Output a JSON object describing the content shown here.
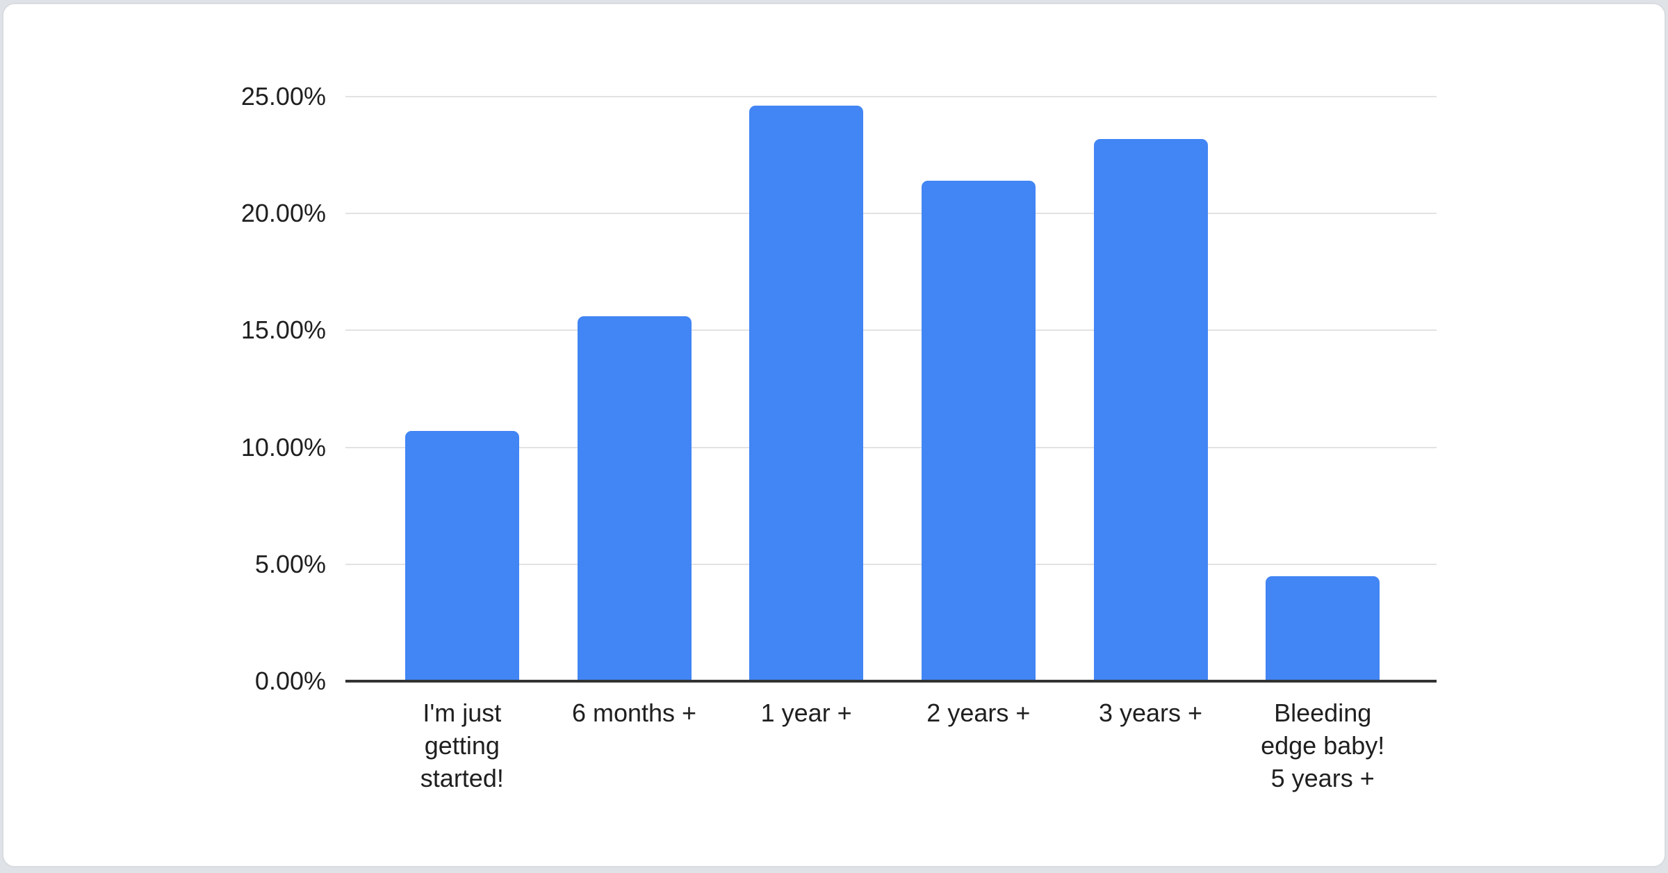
{
  "page": {
    "background_color": "#dfe2e6",
    "card_background": "#ffffff",
    "card_border_color": "#d8dbdf"
  },
  "chart_data": {
    "type": "bar",
    "title": "",
    "xlabel": "",
    "ylabel": "",
    "categories": [
      "I'm just getting started!",
      "6 months +",
      "1 year +",
      "2 years +",
      "3 years +",
      "Bleeding edge baby! 5 years +"
    ],
    "category_lines": [
      [
        "I'm just",
        "getting",
        "started!"
      ],
      [
        "6 months +"
      ],
      [
        "1 year +"
      ],
      [
        "2 years +"
      ],
      [
        "3 years +"
      ],
      [
        "Bleeding",
        "edge baby!",
        "5 years +"
      ]
    ],
    "values": [
      10.7,
      15.6,
      24.6,
      21.4,
      23.2,
      4.5
    ],
    "value_unit": "%",
    "ylim": [
      0,
      25
    ],
    "y_ticks": [
      {
        "label": "0.00%",
        "value": 0
      },
      {
        "label": "5.00%",
        "value": 5
      },
      {
        "label": "10.00%",
        "value": 10
      },
      {
        "label": "15.00%",
        "value": 15
      },
      {
        "label": "20.00%",
        "value": 20
      },
      {
        "label": "25.00%",
        "value": 25
      }
    ],
    "grid": true,
    "legend_position": "none",
    "bar_color": "#4285f4",
    "gridline_color": "#e2e2e2",
    "axis_line_color": "#333333",
    "text_color": "#1f1f1f"
  }
}
